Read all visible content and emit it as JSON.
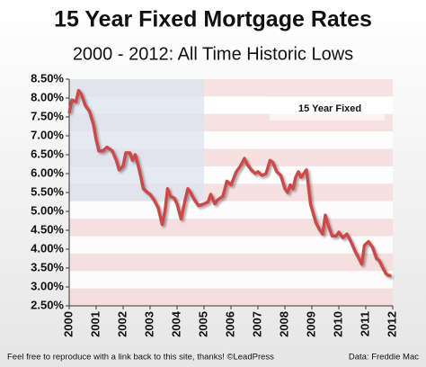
{
  "chart_data": {
    "type": "line",
    "title": "15 Year Fixed Mortgage Rates",
    "subtitle": "2000 - 2012: All Time Historic Lows",
    "x": [
      2000.0,
      2000.1,
      2000.25,
      2000.35,
      2000.45,
      2000.6,
      2000.75,
      2000.9,
      2001.0,
      2001.1,
      2001.25,
      2001.4,
      2001.6,
      2001.75,
      2001.85,
      2002.0,
      2002.1,
      2002.25,
      2002.35,
      2002.45,
      2002.6,
      2002.75,
      2002.9,
      2003.0,
      2003.15,
      2003.3,
      2003.45,
      2003.55,
      2003.65,
      2003.75,
      2003.9,
      2004.0,
      2004.15,
      2004.3,
      2004.4,
      2004.5,
      2004.65,
      2004.8,
      2005.0,
      2005.15,
      2005.25,
      2005.4,
      2005.5,
      2005.7,
      2005.85,
      2006.0,
      2006.2,
      2006.35,
      2006.5,
      2006.6,
      2006.75,
      2006.9,
      2007.0,
      2007.15,
      2007.3,
      2007.45,
      2007.55,
      2007.7,
      2007.85,
      2008.0,
      2008.1,
      2008.2,
      2008.3,
      2008.4,
      2008.5,
      2008.6,
      2008.7,
      2008.8,
      2008.85,
      2008.95,
      2009.05,
      2009.15,
      2009.3,
      2009.4,
      2009.5,
      2009.6,
      2009.75,
      2009.9,
      2010.0,
      2010.15,
      2010.3,
      2010.45,
      2010.6,
      2010.75,
      2010.85,
      2010.95,
      2011.1,
      2011.25,
      2011.4,
      2011.5,
      2011.6,
      2011.75,
      2011.85,
      2011.95
    ],
    "series": [
      {
        "name": "15 Year Fixed",
        "color": "#cc4a48",
        "values": [
          7.6,
          7.95,
          7.9,
          8.2,
          8.1,
          7.8,
          7.65,
          7.3,
          6.9,
          6.6,
          6.6,
          6.7,
          6.6,
          6.35,
          6.1,
          6.2,
          6.55,
          6.55,
          6.35,
          6.5,
          6.1,
          5.6,
          5.5,
          5.45,
          5.3,
          5.1,
          4.65,
          5.0,
          5.6,
          5.4,
          5.35,
          5.2,
          4.8,
          5.3,
          5.6,
          5.5,
          5.3,
          5.15,
          5.2,
          5.25,
          5.45,
          5.2,
          5.3,
          5.4,
          5.8,
          5.7,
          6.05,
          6.2,
          6.4,
          6.25,
          6.1,
          6.0,
          6.05,
          5.95,
          6.0,
          6.35,
          6.3,
          6.05,
          5.95,
          5.6,
          5.5,
          5.7,
          5.6,
          5.9,
          6.05,
          5.9,
          6.0,
          6.1,
          5.8,
          5.2,
          4.95,
          4.7,
          4.5,
          4.4,
          4.9,
          4.65,
          4.35,
          4.35,
          4.45,
          4.3,
          4.4,
          4.2,
          3.95,
          3.75,
          3.6,
          4.1,
          4.2,
          4.05,
          3.75,
          3.7,
          3.55,
          3.35,
          3.3,
          3.3
        ]
      }
    ],
    "xlim": [
      2000,
      2012
    ],
    "xticks": [
      2000,
      2001,
      2002,
      2003,
      2004,
      2005,
      2006,
      2007,
      2008,
      2009,
      2010,
      2011,
      2012
    ],
    "ylim": [
      2.5,
      8.5
    ],
    "yticks": [
      {
        "value": 2.5,
        "label": "2.50%"
      },
      {
        "value": 3.0,
        "label": "3.00%"
      },
      {
        "value": 3.5,
        "label": "3.50%"
      },
      {
        "value": 4.0,
        "label": "4.00%"
      },
      {
        "value": 4.5,
        "label": "4.50%"
      },
      {
        "value": 5.0,
        "label": "5.00%"
      },
      {
        "value": 5.5,
        "label": "5.50%"
      },
      {
        "value": 6.0,
        "label": "6.00%"
      },
      {
        "value": 6.5,
        "label": "6.50%"
      },
      {
        "value": 7.0,
        "label": "7.00%"
      },
      {
        "value": 7.5,
        "label": "7.50%"
      },
      {
        "value": 8.0,
        "label": "8.00%"
      },
      {
        "value": 8.5,
        "label": "8.50%"
      }
    ],
    "legend": "upper right",
    "footer": "Feel free to reproduce with a link back to this site, thanks! ©LeadPress",
    "source": "Data: Freddie Mac"
  }
}
